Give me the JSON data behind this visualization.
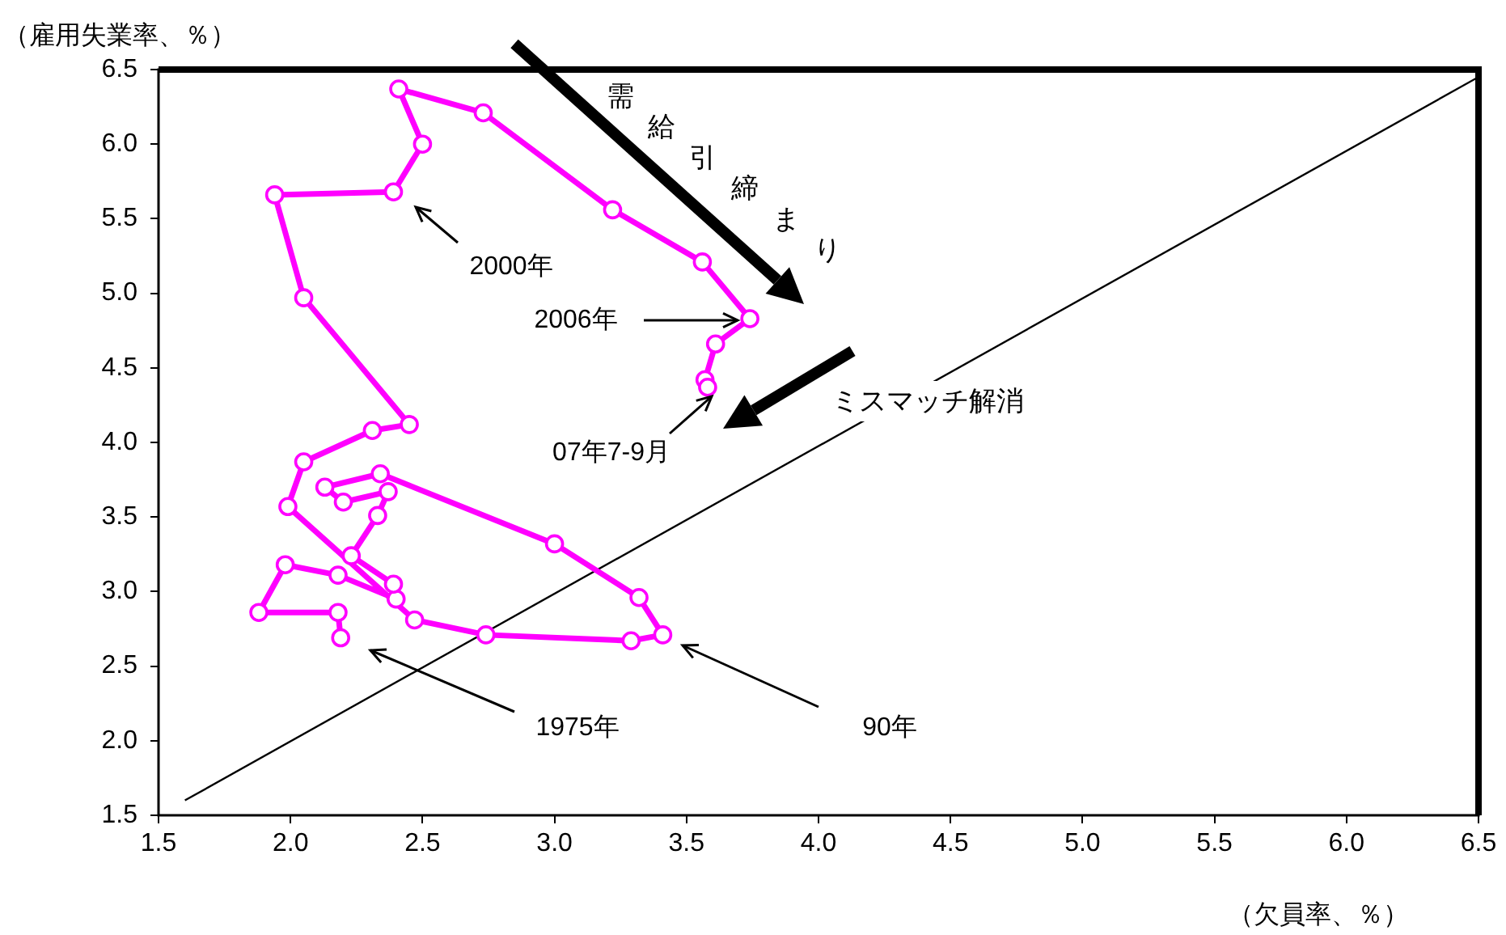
{
  "chart_data": {
    "type": "line",
    "xlabel": "（欠員率、％）",
    "ylabel": "（雇用失業率、％）",
    "xlim": [
      1.5,
      6.5
    ],
    "xticks": [
      1.5,
      {
        "value": 2,
        "label": "2.0"
      },
      2.5,
      {
        "value": 3,
        "label": "3.0"
      },
      3.5,
      {
        "value": 4,
        "label": "4.0"
      },
      4.5,
      {
        "value": 5,
        "label": "5.0"
      },
      5.5,
      {
        "value": 6,
        "label": "6.0"
      },
      6.5
    ],
    "ylim": [
      1.5,
      6.5
    ],
    "yticks": [
      1.5,
      {
        "value": 2,
        "label": "2.0"
      },
      2.5,
      {
        "value": 3,
        "label": "3.0"
      },
      3.5,
      {
        "value": 4,
        "label": "4.0"
      },
      4.5,
      {
        "value": 5,
        "label": "5.0"
      },
      5.5,
      {
        "value": 6,
        "label": "6.0"
      },
      6.5
    ],
    "grid": false,
    "legend": false,
    "marker": "circle",
    "annotations": [
      "需給引締まり",
      "ミスマッチ解消",
      "2000年",
      "2006年",
      "07年7-9月",
      "1975年",
      "90年"
    ],
    "series": [
      {
        "color": "#ff00ff",
        "x": [
          2.19,
          2.18,
          1.88,
          1.98,
          2.18,
          2.4,
          2.39,
          2.23,
          2.33,
          2.37,
          2.2,
          2.13,
          2.34,
          3.0,
          3.32,
          3.41,
          3.29,
          2.74,
          2.47,
          1.99,
          2.05,
          2.31,
          2.45,
          2.05,
          1.94,
          2.39,
          2.5,
          2.41,
          2.73,
          3.22,
          3.56,
          3.74,
          3.61,
          3.57,
          3.58
        ],
        "values": [
          2.69,
          2.86,
          2.86,
          3.18,
          3.11,
          2.95,
          3.05,
          3.24,
          3.51,
          3.67,
          3.6,
          3.7,
          3.79,
          3.32,
          2.96,
          2.71,
          2.67,
          2.71,
          2.81,
          3.57,
          3.87,
          4.08,
          4.12,
          4.97,
          5.66,
          5.68,
          6.0,
          6.37,
          6.21,
          5.56,
          5.21,
          4.83,
          4.66,
          4.42,
          4.37
        ]
      },
      {
        "type": "line",
        "color": "#000000",
        "marker": "none",
        "x": [
          1.6,
          6.5
        ],
        "values": [
          1.6,
          6.45
        ]
      }
    ]
  }
}
